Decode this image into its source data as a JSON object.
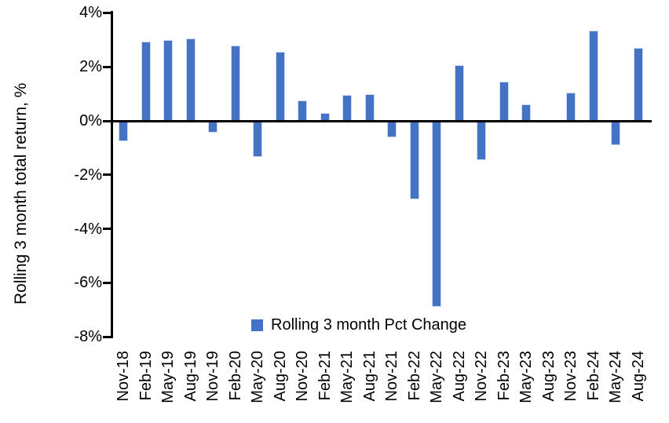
{
  "chart_data": {
    "type": "bar",
    "categories": [
      "Nov-18",
      "Feb-19",
      "May-19",
      "Aug-19",
      "Nov-19",
      "Feb-20",
      "May-20",
      "Aug-20",
      "Nov-20",
      "Feb-21",
      "May-21",
      "Aug-21",
      "Nov-21",
      "Feb-22",
      "May-22",
      "Aug-22",
      "Nov-22",
      "Feb-23",
      "May-23",
      "Aug-23",
      "Nov-23",
      "Feb-24",
      "May-24",
      "Aug-24"
    ],
    "values": [
      -0.75,
      2.95,
      3.0,
      3.05,
      -0.45,
      2.8,
      -1.35,
      2.55,
      0.75,
      0.3,
      0.95,
      1.0,
      -0.6,
      -2.9,
      -6.9,
      2.05,
      -1.45,
      1.45,
      0.6,
      0.0,
      1.05,
      3.35,
      -0.9,
      2.7
    ],
    "title": "",
    "xlabel": "",
    "ylabel": "Rolling 3 month total return, %",
    "ylim": [
      -8,
      4
    ],
    "ytick_values": [
      4,
      2,
      0,
      -2,
      -4,
      -6,
      -8
    ],
    "ytick_labels": [
      "4%",
      "2%",
      "0%",
      "-2%",
      "-4%",
      "-6%",
      "-8%"
    ],
    "grid": false,
    "legend": {
      "position": "bottom-inside",
      "entries": [
        "Rolling 3 month Pct Change"
      ]
    },
    "bar_color": "#4472C4",
    "bar_edge_color": "#ccd9ee",
    "axis_color": "#000000",
    "text_color": "#000000"
  }
}
